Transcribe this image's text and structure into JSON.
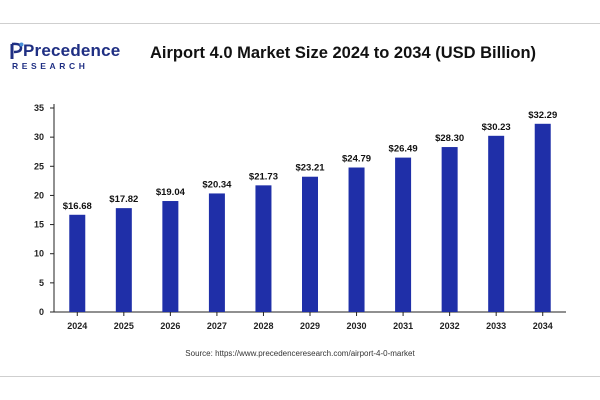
{
  "brand": {
    "name": "Precedence",
    "subline": "RESEARCH",
    "icon": "precedence-logo-icon"
  },
  "chart_data": {
    "type": "bar",
    "title": "Airport 4.0 Market Size 2024 to 2034 (USD Billion)",
    "categories": [
      "2024",
      "2025",
      "2026",
      "2027",
      "2028",
      "2029",
      "2030",
      "2031",
      "2032",
      "2033",
      "2034"
    ],
    "values": [
      16.68,
      17.82,
      19.04,
      20.34,
      21.73,
      23.21,
      24.79,
      26.49,
      28.3,
      30.23,
      32.29
    ],
    "value_labels": [
      "$16.68",
      "$17.82",
      "$19.04",
      "$20.34",
      "$21.73",
      "$23.21",
      "$24.79",
      "$26.49",
      "$28.30",
      "$30.23",
      "$32.29"
    ],
    "y_ticks": [
      0,
      5,
      10,
      15,
      20,
      25,
      30,
      35
    ],
    "ylim": [
      0,
      35
    ],
    "grid": false,
    "legend": false,
    "bar_color": "#1f2fa8",
    "xlabel": "",
    "ylabel": ""
  },
  "source": "Source: https://www.precedenceresearch.com/airport-4-0-market"
}
